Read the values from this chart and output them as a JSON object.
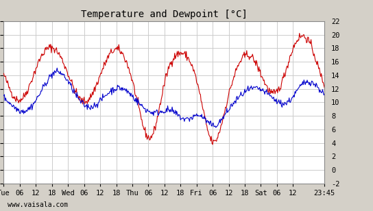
{
  "title": "Temperature and Dewpoint [°C]",
  "ylabel_right": "",
  "ylim": [
    -2,
    22
  ],
  "yticks": [
    -2,
    0,
    2,
    4,
    6,
    8,
    10,
    12,
    14,
    16,
    18,
    20,
    22
  ],
  "background_color": "#d4d0c8",
  "plot_bg_color": "#ffffff",
  "grid_color": "#cccccc",
  "temp_color": "#cc0000",
  "dewp_color": "#0000cc",
  "watermark": "www.vaisala.com",
  "xtick_labels": [
    "Tue",
    "06",
    "12",
    "18",
    "Wed",
    "06",
    "12",
    "18",
    "Thu",
    "06",
    "12",
    "18",
    "Fri",
    "06",
    "12",
    "18",
    "Sat",
    "06",
    "12",
    "23:45"
  ],
  "n_points": 500
}
